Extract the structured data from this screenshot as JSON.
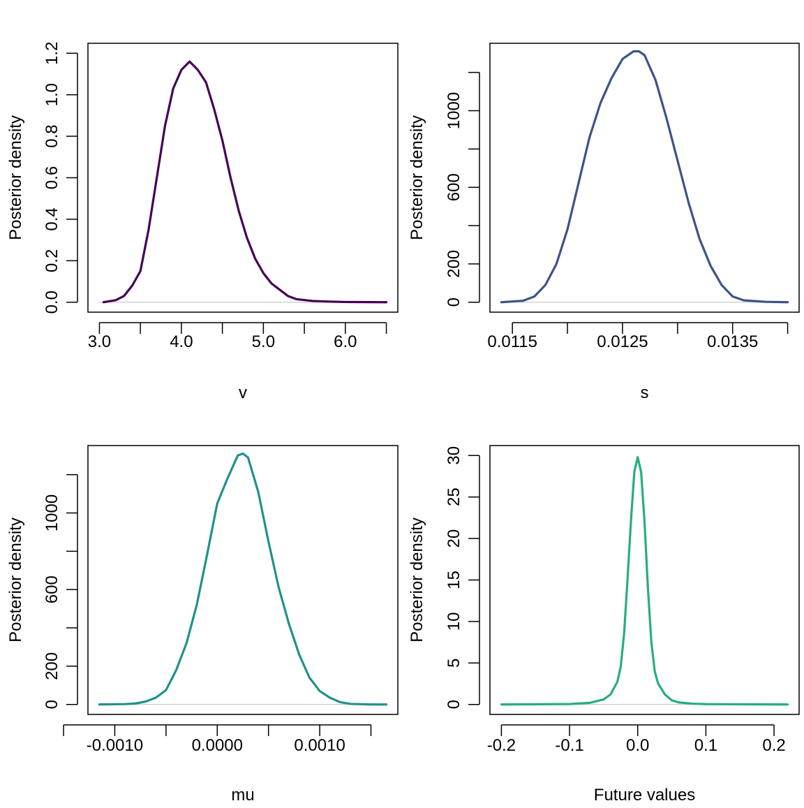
{
  "chart_data": [
    {
      "type": "line",
      "xlabel": "v",
      "ylabel": "Posterior density",
      "xlim": [
        3.0,
        6.5
      ],
      "ylim": [
        0,
        1.2
      ],
      "x_ticks": [
        3.0,
        3.5,
        4.0,
        4.5,
        5.0,
        5.5,
        6.0,
        6.5
      ],
      "x_tick_labels": [
        "3.0",
        "",
        "4.0",
        "",
        "5.0",
        "",
        "6.0",
        ""
      ],
      "y_ticks": [
        0.0,
        0.2,
        0.4,
        0.6,
        0.8,
        1.0,
        1.2
      ],
      "y_tick_labels": [
        "0.0",
        "0.2",
        "0.4",
        "0.6",
        "0.8",
        "1.0",
        "1.2"
      ],
      "grid": false,
      "color": "#440154",
      "series": [
        {
          "x": [
            3.05,
            3.2,
            3.3,
            3.4,
            3.5,
            3.6,
            3.7,
            3.8,
            3.9,
            4.0,
            4.1,
            4.2,
            4.3,
            4.4,
            4.5,
            4.6,
            4.7,
            4.8,
            4.9,
            5.0,
            5.1,
            5.2,
            5.3,
            5.4,
            5.6,
            5.8,
            6.0,
            6.5
          ],
          "y": [
            0.0,
            0.01,
            0.03,
            0.08,
            0.15,
            0.35,
            0.6,
            0.85,
            1.03,
            1.12,
            1.16,
            1.12,
            1.06,
            0.93,
            0.78,
            0.6,
            0.44,
            0.31,
            0.21,
            0.14,
            0.09,
            0.06,
            0.03,
            0.015,
            0.006,
            0.003,
            0.001,
            0.0
          ]
        }
      ]
    },
    {
      "type": "line",
      "xlabel": "s",
      "ylabel": "Posterior density",
      "xlim": [
        0.0114,
        0.014
      ],
      "ylim": [
        0,
        1300
      ],
      "x_ticks": [
        0.0115,
        0.012,
        0.0125,
        0.013,
        0.0135,
        0.014
      ],
      "x_tick_labels": [
        "0.0115",
        "",
        "0.0125",
        "",
        "0.0135",
        ""
      ],
      "y_ticks": [
        0,
        200,
        400,
        600,
        800,
        1000,
        1200
      ],
      "y_tick_labels": [
        "0",
        "200",
        "",
        "600",
        "",
        "1000",
        ""
      ],
      "grid": false,
      "color": "#3b528b",
      "series": [
        {
          "x": [
            0.0114,
            0.0116,
            0.0117,
            0.0118,
            0.0119,
            0.012,
            0.0121,
            0.0122,
            0.0123,
            0.0124,
            0.0125,
            0.0126,
            0.01265,
            0.0127,
            0.0128,
            0.0129,
            0.013,
            0.0131,
            0.0132,
            0.0133,
            0.0134,
            0.0135,
            0.0136,
            0.0138,
            0.014
          ],
          "y": [
            0,
            8,
            30,
            90,
            200,
            380,
            620,
            860,
            1040,
            1170,
            1270,
            1310,
            1310,
            1290,
            1160,
            960,
            740,
            520,
            330,
            190,
            90,
            30,
            10,
            2,
            0
          ]
        }
      ]
    },
    {
      "type": "line",
      "xlabel": "mu",
      "ylabel": "Posterior density",
      "xlim": [
        -0.00115,
        0.00165
      ],
      "ylim": [
        0,
        1300
      ],
      "x_ticks": [
        -0.0015,
        -0.001,
        -0.0005,
        0.0,
        0.0005,
        0.001,
        0.0015
      ],
      "x_tick_labels": [
        "",
        "-0.0010",
        "",
        "0.0000",
        "",
        "0.0010",
        ""
      ],
      "y_ticks": [
        0,
        200,
        400,
        600,
        800,
        1000,
        1200
      ],
      "y_tick_labels": [
        "0",
        "200",
        "",
        "600",
        "",
        "1000",
        ""
      ],
      "grid": false,
      "color": "#21908d",
      "series": [
        {
          "x": [
            -0.00115,
            -0.0009,
            -0.0008,
            -0.0007,
            -0.0006,
            -0.0005,
            -0.0004,
            -0.0003,
            -0.0002,
            -0.0001,
            0.0,
            0.0001,
            0.0002,
            0.00025,
            0.0003,
            0.0004,
            0.0005,
            0.0006,
            0.0007,
            0.0008,
            0.0009,
            0.001,
            0.0011,
            0.0012,
            0.0013,
            0.0015,
            0.00165
          ],
          "y": [
            0,
            2,
            5,
            15,
            35,
            75,
            180,
            320,
            520,
            780,
            1050,
            1180,
            1300,
            1310,
            1290,
            1110,
            850,
            610,
            420,
            260,
            140,
            70,
            35,
            12,
            3,
            0,
            0
          ]
        }
      ]
    },
    {
      "type": "line",
      "xlabel": "Future values",
      "ylabel": "Posterior density",
      "xlim": [
        -0.2,
        0.22
      ],
      "ylim": [
        0,
        30
      ],
      "x_ticks": [
        -0.2,
        -0.1,
        0.0,
        0.1,
        0.2
      ],
      "x_tick_labels": [
        "-0.2",
        "-0.1",
        "0.0",
        "0.1",
        "0.2"
      ],
      "y_ticks": [
        0,
        5,
        10,
        15,
        20,
        25,
        30
      ],
      "y_tick_labels": [
        "0",
        "5",
        "10",
        "15",
        "20",
        "25",
        "30"
      ],
      "grid": false,
      "color": "#27ad81",
      "series": [
        {
          "x": [
            -0.2,
            -0.1,
            -0.07,
            -0.05,
            -0.04,
            -0.03,
            -0.025,
            -0.02,
            -0.015,
            -0.01,
            -0.005,
            0.0,
            0.005,
            0.01,
            0.015,
            0.02,
            0.025,
            0.03,
            0.04,
            0.05,
            0.06,
            0.08,
            0.1,
            0.22
          ],
          "y": [
            0,
            0.05,
            0.2,
            0.6,
            1.2,
            2.7,
            4.5,
            8.5,
            15,
            22,
            28,
            29.8,
            28,
            22,
            14,
            7.5,
            4,
            2.5,
            1.2,
            0.5,
            0.25,
            0.1,
            0.04,
            0
          ]
        }
      ]
    }
  ]
}
